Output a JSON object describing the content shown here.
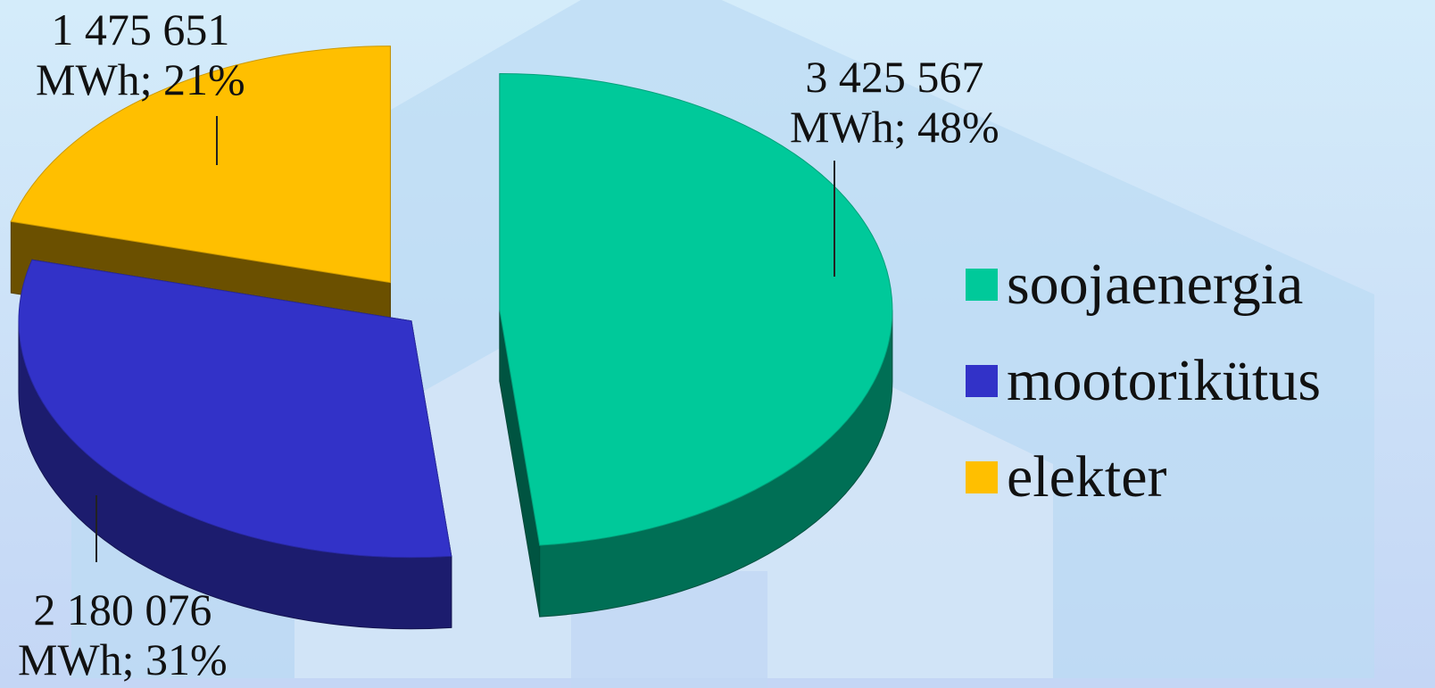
{
  "chart_data": {
    "type": "pie",
    "style": "3d-exploded",
    "series": [
      {
        "name": "soojaenergia",
        "value": 3425567,
        "percent": 48,
        "color": "#00c99a",
        "line1": "3 425 567",
        "line2": "MWh; 48%"
      },
      {
        "name": "mootorikütus",
        "value": 2180076,
        "percent": 31,
        "color": "#3232c8",
        "line1": "2 180 076",
        "line2": "MWh; 31%"
      },
      {
        "name": "elekter",
        "value": 1475651,
        "percent": 21,
        "color": "#ffbf00",
        "line1": "1 475 651",
        "line2": "MWh; 21%"
      }
    ],
    "legend": {
      "position": "right"
    }
  }
}
